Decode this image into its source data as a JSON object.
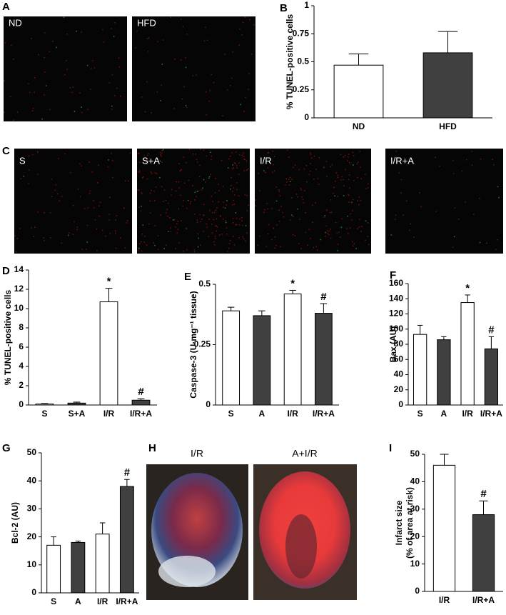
{
  "panels": [
    "A",
    "B",
    "C",
    "D",
    "E",
    "F",
    "G",
    "H",
    "I"
  ],
  "image_labels_a": [
    "ND",
    "HFD"
  ],
  "image_labels_c": [
    "S",
    "S+A",
    "I/R",
    "I/R+A"
  ],
  "image_labels_h": [
    "I/R",
    "A+I/R"
  ],
  "chart_data": [
    {
      "type": "bar",
      "y_label": "% TUNEL-positive cells",
      "categories": [
        "ND",
        "HFD"
      ],
      "values": [
        0.47,
        0.58
      ],
      "errors": [
        0.1,
        0.19
      ],
      "colors": [
        "#ffffff",
        "#404040"
      ],
      "ylim": [
        0,
        1
      ],
      "yticks": [
        0,
        0.25,
        0.5,
        0.75,
        1
      ],
      "annotations": []
    },
    {
      "type": "bar",
      "y_label": "% TUNEL-positive cells",
      "categories": [
        "S",
        "S+A",
        "I/R",
        "I/R+A"
      ],
      "values": [
        0.1,
        0.2,
        10.7,
        0.5
      ],
      "errors": [
        0.05,
        0.1,
        1.4,
        0.15
      ],
      "colors": [
        "#ffffff",
        "#404040",
        "#ffffff",
        "#404040"
      ],
      "ylim": [
        0,
        14
      ],
      "yticks": [
        0,
        2,
        4,
        6,
        8,
        10,
        12,
        14
      ],
      "annotations": [
        {
          "text": "*",
          "category": "I/R"
        },
        {
          "text": "#",
          "category": "I/R+A"
        }
      ]
    },
    {
      "type": "bar",
      "y_label": "Caspase-3 (U·mg⁻¹ tissue)",
      "categories": [
        "S",
        "A",
        "I/R",
        "I/R+A"
      ],
      "values": [
        0.39,
        0.37,
        0.46,
        0.38
      ],
      "errors": [
        0.015,
        0.02,
        0.015,
        0.04
      ],
      "colors": [
        "#ffffff",
        "#404040",
        "#ffffff",
        "#404040"
      ],
      "ylim": [
        0,
        0.5
      ],
      "yticks": [
        0,
        0.25,
        0.5
      ],
      "annotations": [
        {
          "text": "*",
          "category": "I/R"
        },
        {
          "text": "#",
          "category": "I/R+A"
        }
      ]
    },
    {
      "type": "bar",
      "y_label": "Bax (AU)",
      "categories": [
        "S",
        "A",
        "I/R",
        "I/R+A"
      ],
      "values": [
        93,
        86,
        135,
        74
      ],
      "errors": [
        12,
        4,
        10,
        16
      ],
      "colors": [
        "#ffffff",
        "#404040",
        "#ffffff",
        "#404040"
      ],
      "ylim": [
        0,
        160
      ],
      "yticks": [
        0,
        20,
        40,
        60,
        80,
        100,
        120,
        140,
        160
      ],
      "annotations": [
        {
          "text": "*",
          "category": "I/R"
        },
        {
          "text": "#",
          "category": "I/R+A"
        }
      ]
    },
    {
      "type": "bar",
      "y_label": "Bcl-2 (AU)",
      "categories": [
        "S",
        "A",
        "I/R",
        "I/R+A"
      ],
      "values": [
        17,
        18,
        21,
        38
      ],
      "errors": [
        3,
        0.5,
        4,
        2.5
      ],
      "colors": [
        "#ffffff",
        "#404040",
        "#ffffff",
        "#404040"
      ],
      "ylim": [
        0,
        50
      ],
      "yticks": [
        0,
        10,
        20,
        30,
        40,
        50
      ],
      "annotations": [
        {
          "text": "#",
          "category": "I/R+A"
        }
      ]
    },
    {
      "type": "bar",
      "y_label": [
        "Infarct size",
        "(% of area at risk)"
      ],
      "categories": [
        "I/R",
        "I/R+A"
      ],
      "values": [
        46,
        28
      ],
      "errors": [
        4,
        5
      ],
      "colors": [
        "#ffffff",
        "#404040"
      ],
      "ylim": [
        0,
        50
      ],
      "yticks": [
        0,
        10,
        20,
        30,
        40,
        50
      ],
      "annotations": [
        {
          "text": "#",
          "category": "I/R+A"
        }
      ]
    }
  ]
}
